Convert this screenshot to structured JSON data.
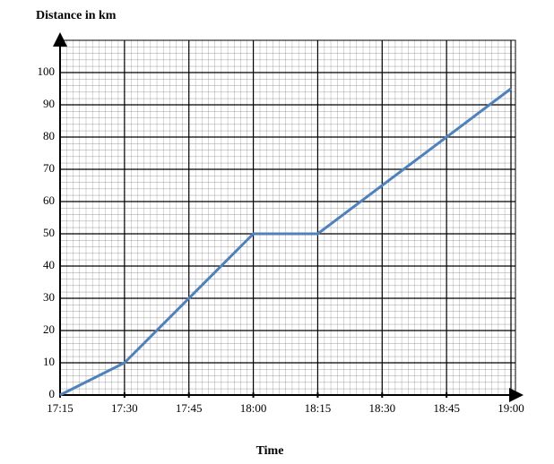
{
  "chart_data": {
    "type": "line",
    "y_label": "Distance in km",
    "x_label": "Time",
    "x": [
      "17:15",
      "17:30",
      "18:00",
      "18:15",
      "19:00"
    ],
    "values": [
      0,
      10,
      50,
      50,
      95
    ],
    "color": "#4f81bd",
    "xlim": [
      "17:15",
      "19:00"
    ],
    "xticks": [
      "17:15",
      "17:30",
      "17:45",
      "18:00",
      "18:15",
      "18:30",
      "18:45",
      "19:00"
    ],
    "ylim": [
      0,
      110
    ],
    "yticks": [
      0,
      10,
      20,
      30,
      40,
      50,
      60,
      70,
      80,
      90,
      100
    ],
    "grid": true
  }
}
